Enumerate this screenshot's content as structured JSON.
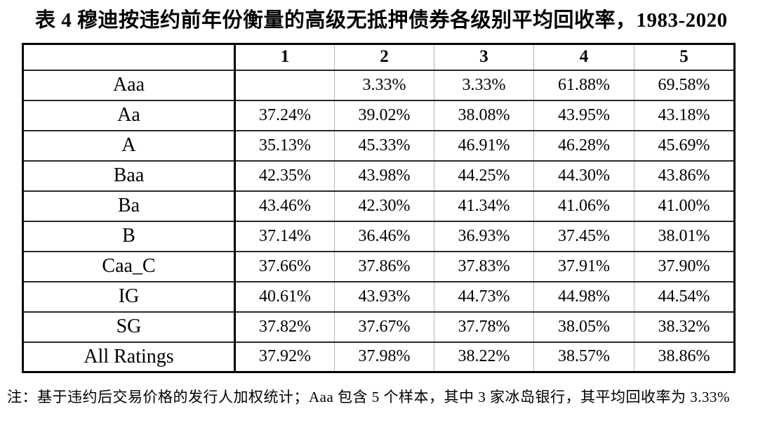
{
  "title": "表 4  穆迪按违约前年份衡量的高级无抵押债券各级别平均回收率，1983-2020",
  "table": {
    "corner_label": "",
    "columns": [
      "1",
      "2",
      "3",
      "4",
      "5"
    ],
    "rows": [
      {
        "label": "Aaa",
        "values": [
          "",
          "3.33%",
          "3.33%",
          "61.88%",
          "69.58%"
        ]
      },
      {
        "label": "Aa",
        "values": [
          "37.24%",
          "39.02%",
          "38.08%",
          "43.95%",
          "43.18%"
        ]
      },
      {
        "label": "A",
        "values": [
          "35.13%",
          "45.33%",
          "46.91%",
          "46.28%",
          "45.69%"
        ]
      },
      {
        "label": "Baa",
        "values": [
          "42.35%",
          "43.98%",
          "44.25%",
          "44.30%",
          "43.86%"
        ]
      },
      {
        "label": "Ba",
        "values": [
          "43.46%",
          "42.30%",
          "41.34%",
          "41.06%",
          "41.00%"
        ]
      },
      {
        "label": "B",
        "values": [
          "37.14%",
          "36.46%",
          "36.93%",
          "37.45%",
          "38.01%"
        ]
      },
      {
        "label": "Caa_C",
        "values": [
          "37.66%",
          "37.86%",
          "37.83%",
          "37.91%",
          "37.90%"
        ]
      },
      {
        "label": "IG",
        "values": [
          "40.61%",
          "43.93%",
          "44.73%",
          "44.98%",
          "44.54%"
        ]
      },
      {
        "label": "SG",
        "values": [
          "37.82%",
          "37.67%",
          "37.78%",
          "38.05%",
          "38.32%"
        ]
      },
      {
        "label": "All Ratings",
        "values": [
          "37.92%",
          "37.98%",
          "38.22%",
          "38.57%",
          "38.86%"
        ]
      }
    ]
  },
  "footnote": "注：基于违约后交易价格的发行人加权统计；Aaa 包含 5 个样本，其中 3 家冰岛银行，其平均回收率为 3.33%",
  "colors": {
    "background": "#ffffff",
    "text": "#000000",
    "outer_border": "#000000",
    "row_line": "#2a2a2a",
    "column_line_light": "#b5b5b5"
  }
}
